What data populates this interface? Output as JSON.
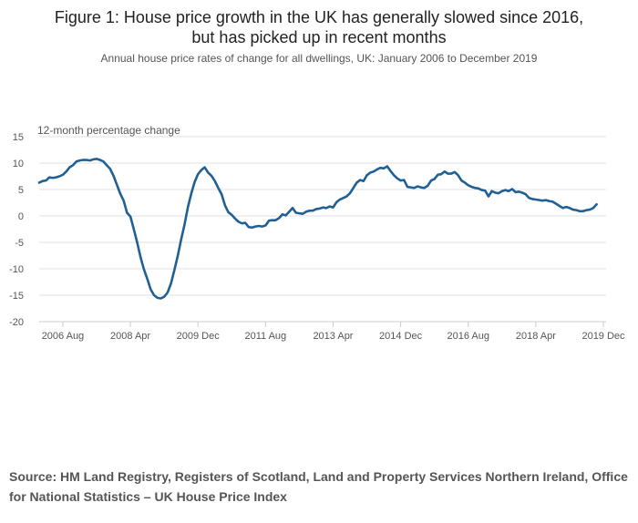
{
  "title_lines": [
    "Figure 1: House price growth in the UK has generally slowed since 2016,",
    "but has picked up in recent months"
  ],
  "subtitle": "Annual house price rates of change for all dwellings, UK: January 2006 to December 2019",
  "source": "Source: HM Land Registry, Registers of Scotland, Land and Property Services Northern Ireland, Office for National Statistics – UK House Price Index",
  "chart_data": {
    "type": "line",
    "title": "Figure 1: House price growth in the UK has generally slowed since 2016, but has picked up in recent months",
    "subtitle": "Annual house price rates of change for all dwellings, UK: January 2006 to December 2019",
    "ylabel": "12-month percentage change",
    "xlabel": "",
    "ylim": [
      -20,
      15
    ],
    "yticks": [
      15,
      10,
      5,
      0,
      -5,
      -10,
      -15,
      -20
    ],
    "xlim": [
      "2006-01",
      "2019-12"
    ],
    "xtick_labels": [
      "2006 Aug",
      "2008 Apr",
      "2009 Dec",
      "2011 Aug",
      "2013 Apr",
      "2014 Dec",
      "2016 Aug",
      "2018 Apr",
      "2019 Dec"
    ],
    "xtick_dates": [
      "2006-08",
      "2008-04",
      "2009-12",
      "2011-08",
      "2013-04",
      "2014-12",
      "2016-08",
      "2018-04",
      "2019-12"
    ],
    "grid": "horizontal",
    "line_color": "#206095",
    "grid_color": "#e0e0e0",
    "series": [
      {
        "start": "2006-01",
        "frequency": "monthly",
        "values": [
          6.3,
          6.6,
          6.7,
          7.3,
          7.2,
          7.3,
          7.5,
          7.8,
          8.4,
          9.2,
          9.6,
          10.3,
          10.5,
          10.6,
          10.6,
          10.5,
          10.7,
          10.8,
          10.6,
          10.3,
          9.6,
          8.9,
          7.6,
          5.9,
          4.2,
          2.9,
          0.6,
          -0.1,
          -2.5,
          -5.0,
          -7.8,
          -10.1,
          -11.9,
          -13.9,
          -15.0,
          -15.5,
          -15.6,
          -15.3,
          -14.5,
          -12.8,
          -10.3,
          -7.6,
          -4.5,
          -1.7,
          1.6,
          4.2,
          6.4,
          7.9,
          8.7,
          9.2,
          8.2,
          7.6,
          6.6,
          5.3,
          4.1,
          2.0,
          0.7,
          0.2,
          -0.5,
          -1.1,
          -1.4,
          -1.3,
          -2.1,
          -2.2,
          -2.0,
          -1.9,
          -2.0,
          -1.8,
          -0.9,
          -0.8,
          -0.8,
          -0.4,
          0.3,
          0.1,
          0.8,
          1.5,
          0.6,
          0.5,
          0.4,
          0.8,
          1.0,
          1.0,
          1.3,
          1.4,
          1.6,
          1.5,
          1.8,
          1.6,
          2.6,
          3.1,
          3.4,
          3.7,
          4.3,
          5.3,
          6.3,
          6.8,
          6.6,
          7.7,
          8.2,
          8.4,
          8.8,
          9.1,
          9.0,
          9.4,
          8.5,
          7.7,
          7.1,
          6.7,
          6.8,
          5.5,
          5.4,
          5.3,
          5.6,
          5.4,
          5.3,
          5.7,
          6.7,
          7.0,
          7.8,
          7.9,
          8.4,
          8.0,
          8.0,
          8.3,
          7.7,
          6.7,
          6.3,
          5.8,
          5.5,
          5.3,
          5.2,
          4.9,
          4.8,
          3.7,
          4.7,
          4.4,
          4.3,
          4.7,
          4.9,
          4.7,
          5.1,
          4.5,
          4.6,
          4.4,
          4.1,
          3.4,
          3.2,
          3.1,
          3.0,
          2.9,
          3.0,
          2.8,
          2.7,
          2.3,
          1.9,
          1.5,
          1.7,
          1.5,
          1.2,
          1.1,
          0.9,
          0.9,
          1.1,
          1.2,
          1.5,
          2.2
        ]
      }
    ]
  }
}
